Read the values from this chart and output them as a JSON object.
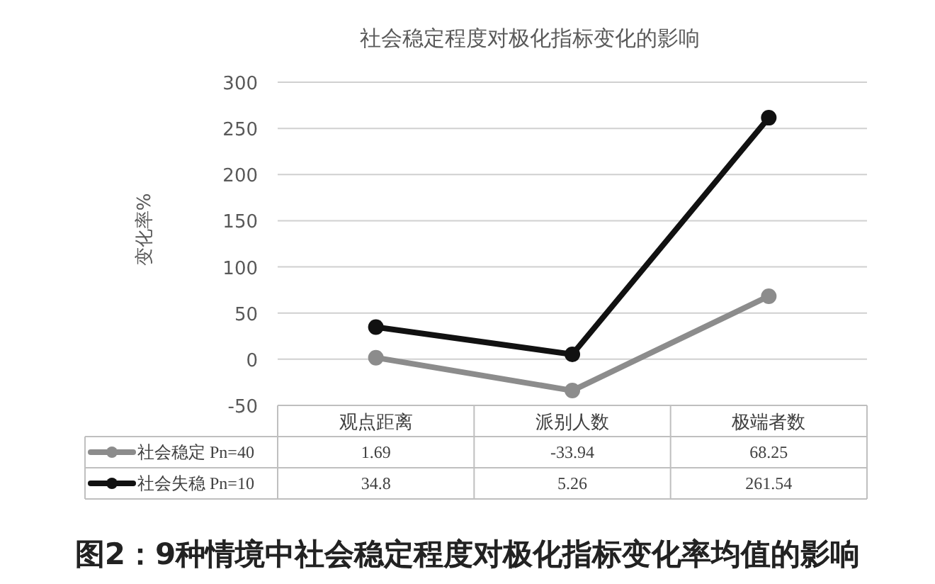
{
  "chart_data": {
    "type": "line",
    "title": "社会稳定程度对极化指标变化的影响",
    "ylabel": "变化率%",
    "annotations": [
      "图2：9种情境中社会稳定程度对极化指标变化率均值的影响"
    ],
    "categories": [
      "观点距离",
      "派别人数",
      "极端者数"
    ],
    "series": [
      {
        "name": "社会稳定 Pn=40",
        "color": "#8c8c8c",
        "values": [
          1.69,
          -33.94,
          68.25
        ]
      },
      {
        "name": "社会失稳 Pn=10",
        "color": "#111111",
        "values": [
          34.8,
          5.26,
          261.54
        ]
      }
    ],
    "ylim": [
      -50,
      300
    ],
    "yticks": [
      -50,
      0,
      50,
      100,
      150,
      200,
      250,
      300
    ],
    "grid": "y",
    "legend": "bottom",
    "marker": "circle",
    "line_style": "solid",
    "data_labels": true
  }
}
